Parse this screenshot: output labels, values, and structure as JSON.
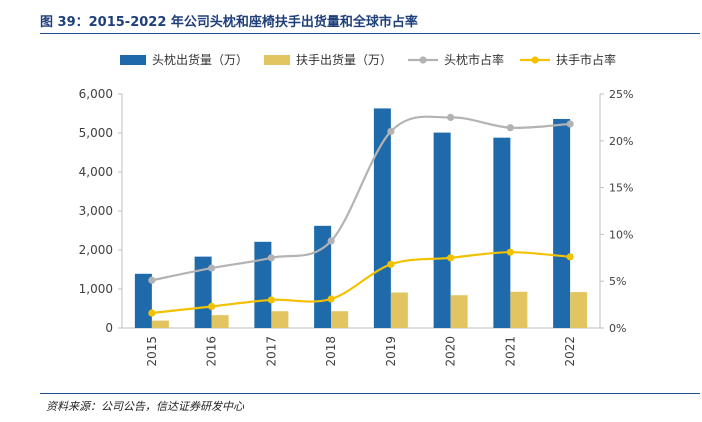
{
  "header": {
    "title": "图 39：2015-2022 年公司头枕和座椅扶手出货量和全球市占率"
  },
  "footer": {
    "source": "资料来源：公司公告，信达证券研发中心"
  },
  "chart_data": {
    "type": "bar",
    "categories": [
      "2015",
      "2016",
      "2017",
      "2018",
      "2019",
      "2020",
      "2021",
      "2022"
    ],
    "series": [
      {
        "name": "头枕出货量（万）",
        "kind": "bar",
        "axis": "left",
        "color": "#1f6aab",
        "values": [
          1390,
          1830,
          2210,
          2620,
          5630,
          5010,
          4880,
          5360
        ]
      },
      {
        "name": "扶手出货量（万）",
        "kind": "bar",
        "axis": "left",
        "color": "#e2c461",
        "values": [
          190,
          330,
          430,
          430,
          910,
          840,
          930,
          920
        ]
      },
      {
        "name": "头枕市占率",
        "kind": "line",
        "axis": "right",
        "color": "#b3b3b3",
        "values": [
          5.1,
          6.4,
          7.5,
          9.3,
          21.0,
          22.5,
          21.4,
          21.8
        ]
      },
      {
        "name": "扶手市占率",
        "kind": "line",
        "axis": "right",
        "color": "#f2c100",
        "values": [
          1.6,
          2.3,
          3.0,
          3.1,
          6.8,
          7.5,
          8.1,
          7.6
        ]
      }
    ],
    "y_left": {
      "min": 0,
      "max": 6000,
      "step": 1000,
      "ticks": [
        "0",
        "1,000",
        "2,000",
        "3,000",
        "4,000",
        "5,000",
        "6,000"
      ]
    },
    "y_right": {
      "min": 0,
      "max": 25,
      "step": 5,
      "ticks": [
        "0%",
        "5%",
        "10%",
        "15%",
        "20%",
        "25%"
      ]
    },
    "legend_position": "top",
    "grid": false
  }
}
